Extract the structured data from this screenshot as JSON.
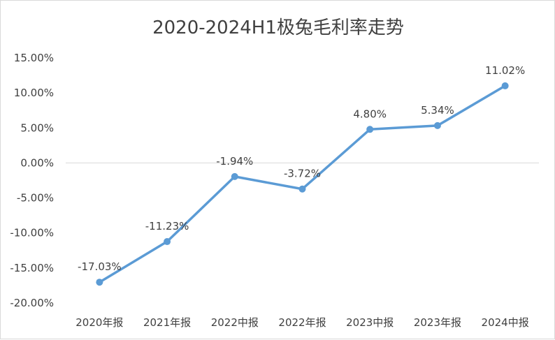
{
  "chart_data": {
    "type": "line",
    "title": "2020-2024H1极兔毛利率走势",
    "categories": [
      "2020年报",
      "2021年报",
      "2022中报",
      "2022年报",
      "2023中报",
      "2023年报",
      "2024中报"
    ],
    "series": [
      {
        "values": [
          -17.03,
          -11.23,
          -1.94,
          -3.72,
          4.8,
          5.34,
          11.02
        ],
        "labels": [
          "-17.03%",
          "-11.23%",
          "-1.94%",
          "-3.72%",
          "4.80%",
          "5.34%",
          "11.02%"
        ],
        "color": "#5b9bd5"
      }
    ],
    "ylim": [
      -20,
      15
    ],
    "ytick_step": 5,
    "yticks": [
      "-20.00%",
      "-15.00%",
      "-10.00%",
      "-5.00%",
      "0.00%",
      "5.00%",
      "10.00%",
      "15.00%"
    ],
    "grid": false,
    "legend": "none",
    "xlabel": "",
    "ylabel": ""
  },
  "colors": {
    "line": "#5b9bd5",
    "text": "#404040",
    "axis": "#d9d9d9"
  }
}
